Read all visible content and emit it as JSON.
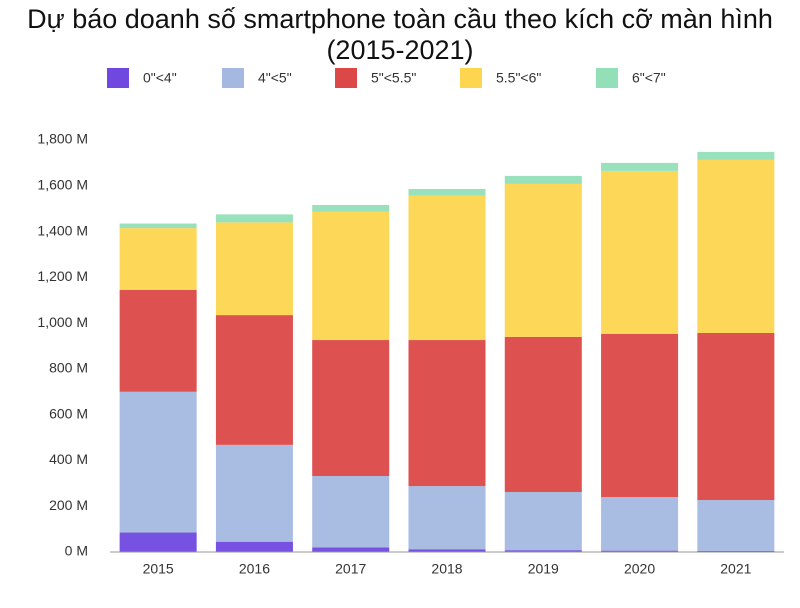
{
  "chart_data": {
    "type": "stacked_bar",
    "title": "Dự báo doanh số smartphone toàn cầu theo kích cỡ màn hình (2015-2021)",
    "categories": [
      "2015",
      "2016",
      "2017",
      "2018",
      "2019",
      "2020",
      "2021"
    ],
    "series": [
      {
        "name": "0\"<4\"",
        "color": "#7048e0",
        "values": [
          85,
          45,
          20,
          12,
          8,
          6,
          5
        ]
      },
      {
        "name": "4\"<5\"",
        "color": "#a4b8e0",
        "values": [
          615,
          423,
          312,
          276,
          254,
          234,
          222
        ]
      },
      {
        "name": "5\"<5.5\"",
        "color": "#dc4848",
        "values": [
          445,
          567,
          594,
          638,
          678,
          713,
          730
        ]
      },
      {
        "name": "5.5\"<6\"",
        "color": "#fdd54f",
        "values": [
          270,
          405,
          560,
          630,
          668,
          712,
          756
        ]
      },
      {
        "name": "6\"<7\"",
        "color": "#93dfb8",
        "values": [
          20,
          35,
          30,
          30,
          35,
          35,
          35
        ]
      }
    ],
    "ylim": [
      0,
      1800
    ],
    "yticks": [
      {
        "value": 0,
        "label": "0 M"
      },
      {
        "value": 200,
        "label": "200 M"
      },
      {
        "value": 400,
        "label": "400 M"
      },
      {
        "value": 600,
        "label": "600 M"
      },
      {
        "value": 800,
        "label": "800 M"
      },
      {
        "value": 1000,
        "label": "1,000 M"
      },
      {
        "value": 1200,
        "label": "1,200 M"
      },
      {
        "value": 1400,
        "label": "1,400 M"
      },
      {
        "value": 1600,
        "label": "1,600 M"
      },
      {
        "value": 1800,
        "label": "1,800 M"
      }
    ],
    "grid": false,
    "legend": "top"
  }
}
